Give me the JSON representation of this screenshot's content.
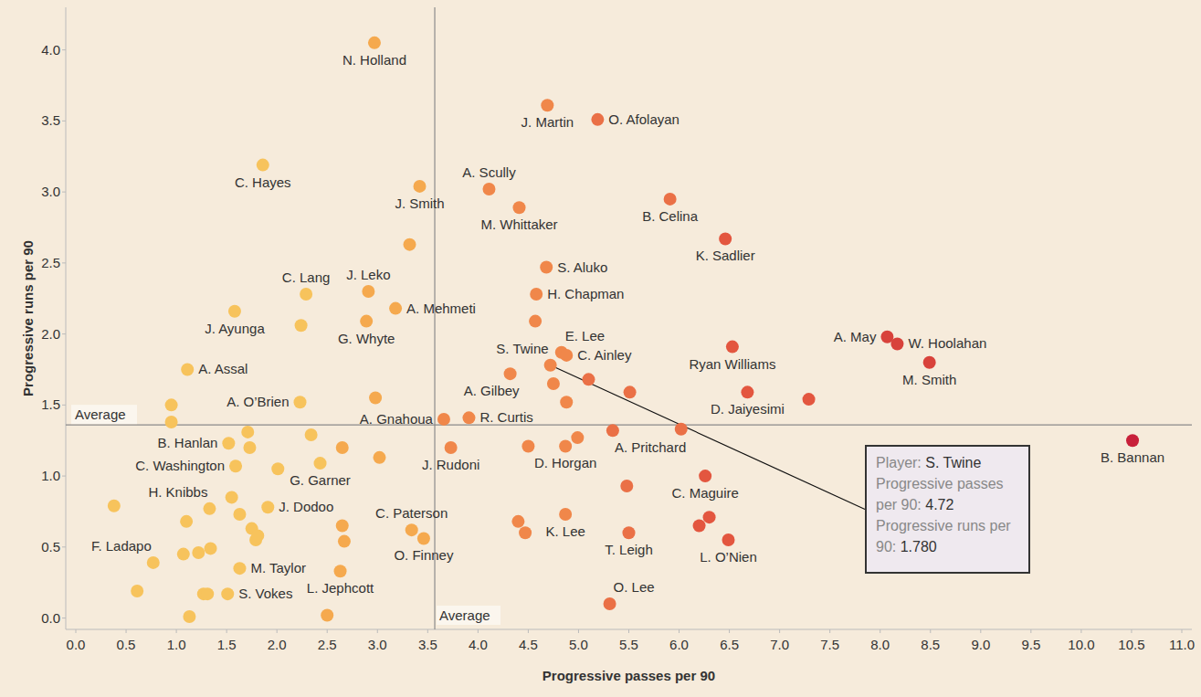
{
  "chart_data": {
    "type": "scatter",
    "xlabel": "Progressive passes per 90",
    "ylabel": "Progressive runs per 90",
    "xlim": [
      -0.1,
      11.1
    ],
    "ylim": [
      -0.08,
      4.3
    ],
    "xticks": [
      {
        "value": 0,
        "label": "0.0"
      },
      0.5,
      {
        "value": 1,
        "label": "1.0"
      },
      1.5,
      {
        "value": 2,
        "label": "2.0"
      },
      2.5,
      {
        "value": 3,
        "label": "3.0"
      },
      3.5,
      {
        "value": 4,
        "label": "4.0"
      },
      4.5,
      {
        "value": 5,
        "label": "5.0"
      },
      5.5,
      {
        "value": 6,
        "label": "6.0"
      },
      6.5,
      {
        "value": 7,
        "label": "7.0"
      },
      7.5,
      {
        "value": 8,
        "label": "8.0"
      },
      8.5,
      {
        "value": 9,
        "label": "9.0"
      },
      9.5,
      {
        "value": 10,
        "label": "10.0"
      },
      10.5,
      {
        "value": 11,
        "label": "11.0"
      }
    ],
    "yticks": [
      {
        "value": 0,
        "label": "0.0"
      },
      0.5,
      {
        "value": 1,
        "label": "1.0"
      },
      1.5,
      {
        "value": 2,
        "label": "2.0"
      },
      2.5,
      {
        "value": 3,
        "label": "3.0"
      },
      3.5,
      {
        "value": 4,
        "label": "4.0"
      }
    ],
    "grid": false,
    "x": [
      2.97,
      4.69,
      5.19,
      1.86,
      4.11,
      3.42,
      4.41,
      5.91,
      6.46,
      3.32,
      4.68,
      2.29,
      2.91,
      3.18,
      4.58,
      1.58,
      2.24,
      2.89,
      4.57,
      8.07,
      8.17,
      6.53,
      8.49,
      4.83,
      4.88,
      4.72,
      1.11,
      4.32,
      5.1,
      4.75,
      6.68,
      7.29,
      5.51,
      4.88,
      2.23,
      2.98,
      0.95,
      0.95,
      3.91,
      3.66,
      5.34,
      6.02,
      4.99,
      10.51,
      1.71,
      2.34,
      1.52,
      1.73,
      2.65,
      4.5,
      4.87,
      3.73,
      3.02,
      2.43,
      1.59,
      2.01,
      6.26,
      5.48,
      1.55,
      1.33,
      0.38,
      1.91,
      1.63,
      1.1,
      4.87,
      4.4,
      6.3,
      6.2,
      2.65,
      1.75,
      3.34,
      4.47,
      5.5,
      1.79,
      1.81,
      6.49,
      3.46,
      2.67,
      0.77,
      1.34,
      1.07,
      1.22,
      1.63,
      2.63,
      1.51,
      1.27,
      1.31,
      0.61,
      1.13,
      2.5,
      5.31
    ],
    "values": [
      4.05,
      3.61,
      3.51,
      3.19,
      3.02,
      3.04,
      2.89,
      2.95,
      2.67,
      2.63,
      2.47,
      2.28,
      2.3,
      2.18,
      2.28,
      2.16,
      2.06,
      2.09,
      2.09,
      1.98,
      1.93,
      1.91,
      1.8,
      1.87,
      1.85,
      1.78,
      1.75,
      1.72,
      1.68,
      1.65,
      1.59,
      1.54,
      1.59,
      1.52,
      1.52,
      1.55,
      1.5,
      1.38,
      1.41,
      1.4,
      1.32,
      1.33,
      1.27,
      1.25,
      1.31,
      1.29,
      1.23,
      1.2,
      1.2,
      1.21,
      1.21,
      1.2,
      1.13,
      1.09,
      1.07,
      1.05,
      1.0,
      0.93,
      0.85,
      0.77,
      0.79,
      0.78,
      0.73,
      0.68,
      0.73,
      0.68,
      0.71,
      0.65,
      0.65,
      0.63,
      0.62,
      0.6,
      0.6,
      0.55,
      0.58,
      0.55,
      0.56,
      0.54,
      0.39,
      0.49,
      0.45,
      0.46,
      0.35,
      0.33,
      0.17,
      0.17,
      0.17,
      0.19,
      0.01,
      0.02,
      0.1
    ],
    "labels": [
      "N. Holland",
      "J. Martin",
      "O. Afolayan",
      "C. Hayes",
      "A. Scully",
      "J. Smith",
      "M. Whittaker",
      "B. Celina",
      "K. Sadlier",
      null,
      "S. Aluko",
      "C. Lang",
      "J. Leko",
      "A. Mehmeti",
      "H. Chapman",
      "J. Ayunga",
      null,
      "G. Whyte",
      null,
      "A. May",
      "W. Hoolahan",
      "Ryan Williams",
      "M. Smith",
      "E. Lee",
      "C. Ainley",
      "S. Twine",
      "A. Assal",
      "A. Gilbey",
      null,
      null,
      "D. Jaiyesimi",
      null,
      null,
      null,
      "A. O’Brien",
      null,
      null,
      null,
      "R. Curtis",
      "A. Gnahoua",
      "A. Pritchard",
      null,
      null,
      "B. Bannan",
      null,
      null,
      "B. Hanlan",
      null,
      null,
      null,
      "D. Horgan",
      "J. Rudoni",
      null,
      "G. Garner",
      "C. Washington",
      null,
      "C. Maguire",
      null,
      null,
      "H. Knibbs",
      null,
      "J. Dodoo",
      null,
      null,
      "K. Lee",
      null,
      null,
      null,
      null,
      null,
      "C. Paterson",
      null,
      "T. Leigh",
      null,
      null,
      "L. O’Nien",
      "O. Finney",
      null,
      "F. Ladapo",
      null,
      null,
      null,
      "M. Taylor",
      "L. Jephcott",
      "S. Vokes",
      null,
      null,
      null,
      null,
      null,
      "O. Lee"
    ],
    "colors": [
      "#f5a94e",
      "#f0874a",
      "#ea7046",
      "#f7c35c",
      "#f0874a",
      "#f5a94e",
      "#f0874a",
      "#ea7046",
      "#e3563f",
      "#f5a94e",
      "#f0874a",
      "#f7c35c",
      "#f5a94e",
      "#f5a94e",
      "#f0874a",
      "#f7c35c",
      "#f7c35c",
      "#f5a94e",
      "#f0874a",
      "#d8423b",
      "#d8423b",
      "#e3563f",
      "#d8423b",
      "#f0874a",
      "#f0874a",
      "#f0874a",
      "#f7c35c",
      "#f0874a",
      "#ea7046",
      "#f0874a",
      "#e3563f",
      "#e3563f",
      "#ea7046",
      "#f0874a",
      "#f7c35c",
      "#f5a94e",
      "#f7c35c",
      "#f7c35c",
      "#f0874a",
      "#f0874a",
      "#ea7046",
      "#ea7046",
      "#f0874a",
      "#c8203a",
      "#f7c35c",
      "#f7c35c",
      "#f7c35c",
      "#f7c35c",
      "#f5a94e",
      "#f0874a",
      "#f0874a",
      "#f0874a",
      "#f5a94e",
      "#f7c35c",
      "#f7c35c",
      "#f7c35c",
      "#e3563f",
      "#ea7046",
      "#f7c35c",
      "#f7c35c",
      "#f7c35c",
      "#f7c35c",
      "#f7c35c",
      "#f7c35c",
      "#f0874a",
      "#f0874a",
      "#e3563f",
      "#e3563f",
      "#f5a94e",
      "#f7c35c",
      "#f5a94e",
      "#f0874a",
      "#ea7046",
      "#f7c35c",
      "#f7c35c",
      "#e3563f",
      "#f5a94e",
      "#f5a94e",
      "#f7c35c",
      "#f7c35c",
      "#f7c35c",
      "#f7c35c",
      "#f7c35c",
      "#f5a94e",
      "#f7c35c",
      "#f7c35c",
      "#f7c35c",
      "#f7c35c",
      "#f7c35c",
      "#f5a94e",
      "#ea7046"
    ],
    "x_average": {
      "value": 3.57,
      "label": "Average"
    },
    "y_average": {
      "value": 1.36,
      "label": "Average"
    },
    "tooltip": {
      "rows": [
        {
          "label": "Player:",
          "value": "S. Twine"
        },
        {
          "label": "Progressive passes per 90:",
          "value": "4.72"
        },
        {
          "label": "Progressive runs per 90:",
          "value": "1.780"
        }
      ]
    }
  }
}
